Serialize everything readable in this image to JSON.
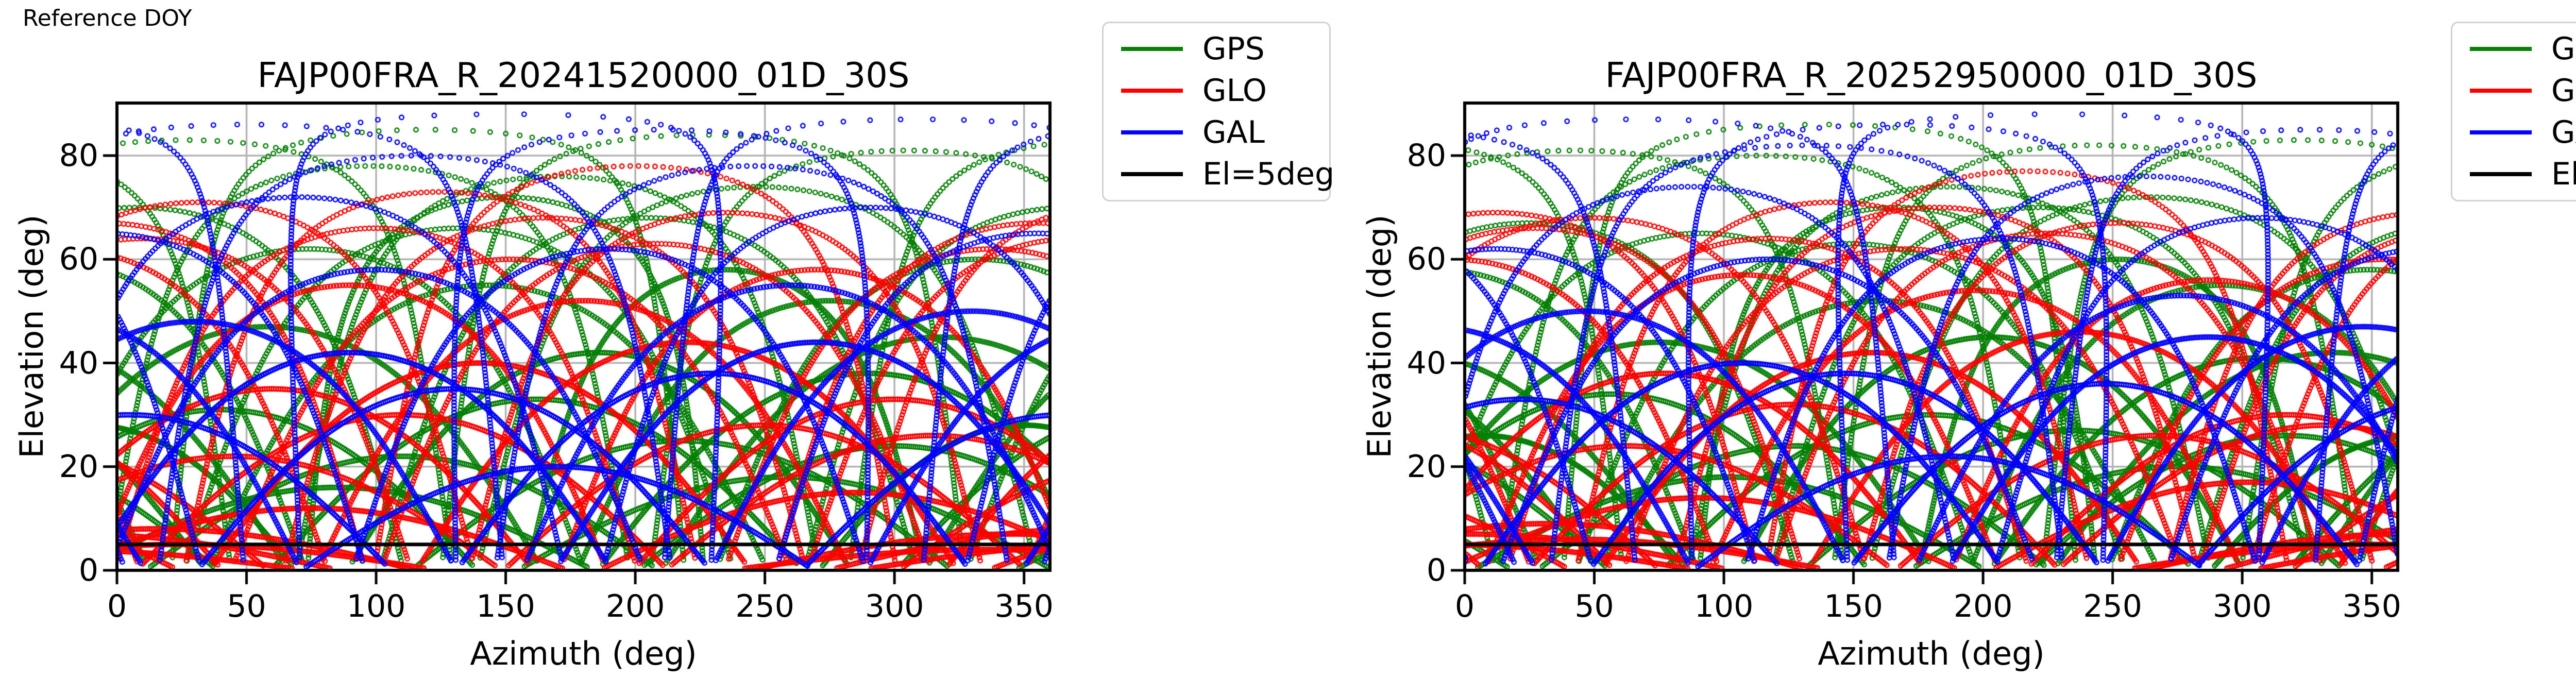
{
  "reference_label": "Reference DOY",
  "colors": {
    "gps": "#068006",
    "glo": "#ff0000",
    "gal": "#0000ff",
    "threshold": "#000000",
    "grid": "#b3b3b3",
    "spine": "#000000",
    "legend_border": "#d2d2d2"
  },
  "legend": {
    "items": [
      {
        "label": "GPS",
        "color_key": "gps"
      },
      {
        "label": "GLO",
        "color_key": "glo"
      },
      {
        "label": "GAL",
        "color_key": "gal"
      },
      {
        "label": "El=5deg",
        "color_key": "threshold"
      }
    ]
  },
  "chart_data": [
    {
      "type": "scatter",
      "title": "FAJP00FRA_R_20241520000_01D_30S",
      "xlabel": "Azimuth (deg)",
      "ylabel": "Elevation (deg)",
      "xlim": [
        0,
        360
      ],
      "ylim": [
        0,
        90.2
      ],
      "xticks": [
        0,
        50,
        100,
        150,
        200,
        250,
        300,
        350
      ],
      "yticks": [
        0,
        20,
        40,
        60,
        80
      ],
      "grid": true,
      "elevation_threshold_deg": 5,
      "marker": "open-circle",
      "legend_position": "outside-right",
      "series": [
        {
          "name": "GPS",
          "color_key": "gps",
          "passes": [
            [
              97,
              78,
              1,
              0.12
            ],
            [
              26,
              83,
              -1,
              -0.15
            ],
            [
              143,
              55,
              1,
              0.2
            ],
            [
              186,
              42,
              -1,
              -0.08
            ],
            [
              205,
              68,
              1,
              0.15
            ],
            [
              247,
              74,
              -1,
              -0.2
            ],
            [
              305,
              81,
              1,
              0.1
            ],
            [
              332,
              60,
              -1,
              -0.12
            ],
            [
              58,
              47,
              1,
              0.18
            ],
            [
              120,
              85,
              -1,
              -0.1
            ],
            [
              162,
              33,
              1,
              0.14
            ],
            [
              218,
              25,
              -1,
              -0.16
            ],
            [
              275,
              52,
              1,
              0.08
            ],
            [
              8,
              70,
              -1,
              -0.14
            ],
            [
              290,
              38,
              1,
              0.16
            ],
            [
              74,
              62,
              -1,
              -0.18
            ],
            [
              110,
              22,
              1,
              0.1
            ],
            [
              226,
              84,
              -1,
              -0.12
            ],
            [
              318,
              45,
              1,
              0.2
            ],
            [
              40,
              31,
              -1,
              -0.1
            ],
            [
              170,
              76,
              1,
              0.12
            ],
            [
              258,
              18,
              -1,
              -0.15
            ],
            [
              132,
              66,
              1,
              0.18
            ],
            [
              350,
              28,
              1,
              -0.12
            ],
            [
              85,
              16,
              1,
              0.1
            ],
            [
              300,
              24,
              -1,
              -0.1
            ],
            [
              150,
              72,
              -1,
              0.15
            ],
            [
              235,
              58,
              1,
              -0.15
            ]
          ]
        },
        {
          "name": "GLO",
          "color_key": "glo",
          "passes": [
            [
              10,
              64,
              1,
              0.15
            ],
            [
              355,
              67,
              -1,
              -0.12
            ],
            [
              32,
              71,
              1,
              0.18
            ],
            [
              338,
              62,
              -1,
              -0.15
            ],
            [
              125,
              73,
              1,
              0.1
            ],
            [
              235,
              69,
              -1,
              -0.1
            ],
            [
              152,
              60,
              1,
              0.2
            ],
            [
              208,
              63,
              -1,
              -0.18
            ],
            [
              60,
              35,
              1,
              0.12
            ],
            [
              300,
              33,
              -1,
              -0.12
            ],
            [
              45,
              22,
              1,
              0.15
            ],
            [
              315,
              26,
              -1,
              -0.15
            ],
            [
              90,
              55,
              1,
              0.1
            ],
            [
              270,
              58,
              -1,
              -0.1
            ],
            [
              140,
              40,
              1,
              0.16
            ],
            [
              220,
              44,
              -1,
              -0.16
            ],
            [
              25,
              5,
              1,
              0.1
            ],
            [
              335,
              4,
              -1,
              -0.1
            ],
            [
              15,
              8,
              1,
              0.12
            ],
            [
              345,
              7,
              -1,
              -0.12
            ],
            [
              180,
              52,
              1,
              0.14
            ],
            [
              110,
              30,
              -1,
              -0.14
            ],
            [
              250,
              28,
              1,
              0.12
            ],
            [
              75,
              12,
              -1,
              -0.1
            ],
            [
              285,
              15,
              1,
              0.1
            ],
            [
              200,
              78,
              -1,
              -0.12
            ],
            [
              165,
              68,
              1,
              0.12
            ],
            [
              100,
              66,
              -1,
              -0.12
            ]
          ]
        },
        {
          "name": "GAL",
          "color_key": "gal",
          "passes": [
            [
              50,
              86,
              1,
              0.1
            ],
            [
              310,
              87,
              -1,
              -0.1
            ],
            [
              150,
              88,
              -1,
              0.12
            ],
            [
              210,
              85,
              1,
              -0.12
            ],
            [
              100,
              58,
              1,
              0.15
            ],
            [
              260,
              55,
              -1,
              -0.15
            ],
            [
              30,
              48,
              1,
              0.12
            ],
            [
              330,
              50,
              -1,
              -0.12
            ],
            [
              130,
              35,
              1,
              0.1
            ],
            [
              230,
              38,
              -1,
              -0.1
            ],
            [
              70,
              72,
              1,
              0.14
            ],
            [
              290,
              70,
              -1,
              -0.14
            ],
            [
              170,
              20,
              1,
              0.1
            ],
            [
              190,
              62,
              -1,
              -0.1
            ],
            [
              5,
              30,
              1,
              0.12
            ],
            [
              355,
              65,
              -1,
              -0.12
            ],
            [
              115,
              80,
              1,
              0.1
            ],
            [
              245,
              78,
              -1,
              -0.1
            ],
            [
              90,
              42,
              1,
              0.12
            ],
            [
              270,
              44,
              -1,
              -0.12
            ]
          ]
        }
      ]
    },
    {
      "type": "scatter",
      "title": "FAJP00FRA_R_20252950000_01D_30S",
      "xlabel": "Azimuth (deg)",
      "ylabel": "Elevation (deg)",
      "xlim": [
        0,
        360
      ],
      "ylim": [
        0,
        90.2
      ],
      "xticks": [
        0,
        50,
        100,
        150,
        200,
        250,
        300,
        350
      ],
      "yticks": [
        0,
        20,
        40,
        60,
        80
      ],
      "grid": true,
      "elevation_threshold_deg": 5,
      "marker": "open-circle",
      "legend_position": "outside-right",
      "series": [
        {
          "name": "GPS",
          "color_key": "gps",
          "passes": [
            [
              114,
              80,
              1,
              0.12
            ],
            [
              43,
              81,
              -1,
              -0.15
            ],
            [
              160,
              52,
              1,
              0.2
            ],
            [
              203,
              45,
              -1,
              -0.08
            ],
            [
              222,
              70,
              1,
              0.15
            ],
            [
              264,
              72,
              -1,
              -0.2
            ],
            [
              322,
              83,
              1,
              0.1
            ],
            [
              349,
              58,
              -1,
              -0.12
            ],
            [
              75,
              44,
              1,
              0.18
            ],
            [
              137,
              86,
              -1,
              -0.1
            ],
            [
              179,
              30,
              1,
              0.14
            ],
            [
              235,
              27,
              -1,
              -0.16
            ],
            [
              292,
              55,
              1,
              0.08
            ],
            [
              25,
              67,
              -1,
              -0.14
            ],
            [
              307,
              41,
              1,
              0.16
            ],
            [
              91,
              65,
              -1,
              -0.18
            ],
            [
              127,
              24,
              1,
              0.1
            ],
            [
              243,
              82,
              -1,
              -0.12
            ],
            [
              335,
              42,
              1,
              0.2
            ],
            [
              57,
              34,
              -1,
              -0.1
            ],
            [
              187,
              74,
              1,
              0.12
            ],
            [
              275,
              20,
              -1,
              -0.15
            ],
            [
              149,
              63,
              1,
              0.18
            ],
            [
              7,
              26,
              1,
              -0.12
            ],
            [
              102,
              18,
              1,
              0.1
            ],
            [
              317,
              26,
              -1,
              -0.1
            ],
            [
              167,
              70,
              -1,
              0.15
            ],
            [
              252,
              60,
              1,
              -0.15
            ]
          ]
        },
        {
          "name": "GLO",
          "color_key": "glo",
          "passes": [
            [
              27,
              66,
              1,
              0.15
            ],
            [
              12,
              69,
              -1,
              -0.12
            ],
            [
              49,
              68,
              1,
              0.18
            ],
            [
              355,
              60,
              -1,
              -0.15
            ],
            [
              142,
              71,
              1,
              0.1
            ],
            [
              252,
              67,
              -1,
              -0.1
            ],
            [
              169,
              62,
              1,
              0.2
            ],
            [
              225,
              65,
              -1,
              -0.18
            ],
            [
              77,
              38,
              1,
              0.12
            ],
            [
              317,
              30,
              -1,
              -0.12
            ],
            [
              62,
              24,
              1,
              0.15
            ],
            [
              332,
              28,
              -1,
              -0.15
            ],
            [
              107,
              57,
              1,
              0.1
            ],
            [
              287,
              56,
              -1,
              -0.1
            ],
            [
              157,
              42,
              1,
              0.16
            ],
            [
              237,
              46,
              -1,
              -0.16
            ],
            [
              42,
              6,
              1,
              0.1
            ],
            [
              352,
              5,
              -1,
              -0.1
            ],
            [
              32,
              9,
              1,
              0.12
            ],
            [
              2,
              7,
              -1,
              -0.12
            ],
            [
              197,
              54,
              1,
              0.14
            ],
            [
              127,
              32,
              -1,
              -0.14
            ],
            [
              267,
              26,
              1,
              0.12
            ],
            [
              92,
              14,
              -1,
              -0.1
            ],
            [
              302,
              17,
              1,
              0.1
            ],
            [
              217,
              77,
              -1,
              -0.12
            ],
            [
              182,
              70,
              1,
              0.12
            ],
            [
              117,
              64,
              -1,
              -0.12
            ]
          ]
        },
        {
          "name": "GAL",
          "color_key": "gal",
          "passes": [
            [
              67,
              87,
              1,
              0.1
            ],
            [
              327,
              85,
              -1,
              -0.1
            ],
            [
              167,
              86,
              -1,
              0.12
            ],
            [
              227,
              88,
              1,
              -0.12
            ],
            [
              117,
              60,
              1,
              0.15
            ],
            [
              277,
              53,
              -1,
              -0.15
            ],
            [
              47,
              50,
              1,
              0.12
            ],
            [
              347,
              47,
              -1,
              -0.12
            ],
            [
              147,
              38,
              1,
              0.1
            ],
            [
              247,
              36,
              -1,
              -0.1
            ],
            [
              87,
              74,
              1,
              0.14
            ],
            [
              307,
              68,
              -1,
              -0.14
            ],
            [
              187,
              22,
              1,
              0.1
            ],
            [
              207,
              64,
              -1,
              -0.1
            ],
            [
              22,
              33,
              1,
              0.12
            ],
            [
              12,
              62,
              -1,
              -0.12
            ],
            [
              132,
              82,
              1,
              0.1
            ],
            [
              262,
              76,
              -1,
              -0.1
            ],
            [
              107,
              40,
              1,
              0.12
            ],
            [
              287,
              45,
              -1,
              -0.12
            ]
          ]
        }
      ]
    }
  ]
}
